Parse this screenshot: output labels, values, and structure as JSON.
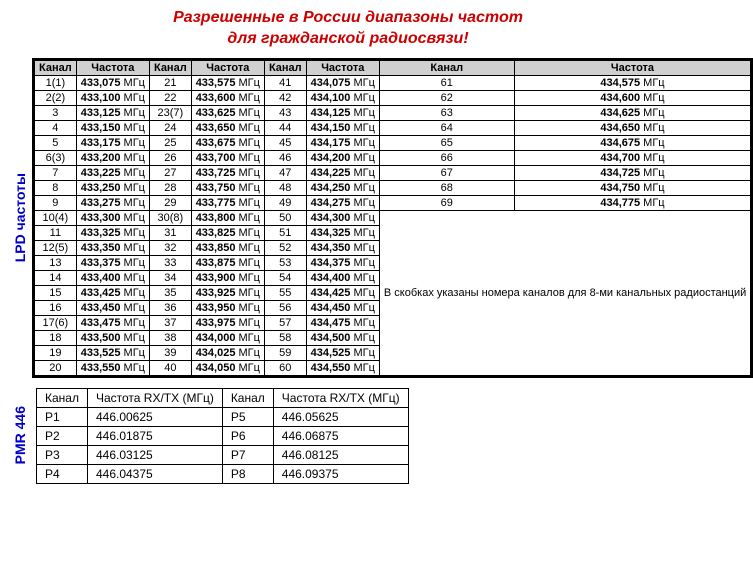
{
  "title_line1": "Разрешенные в России диапазоны частот",
  "title_line2": "для гражданской радиосвязи!",
  "lpd": {
    "side_label": "LPD частоты",
    "headers": {
      "channel": "Канал",
      "freq": "Частота"
    },
    "unit": "МГц",
    "note": "В скобках указаны номера каналов для 8-ми канальных радиостанций",
    "channels": [
      {
        "n": "1(1)",
        "f": "433,075"
      },
      {
        "n": "2(2)",
        "f": "433,100"
      },
      {
        "n": "3",
        "f": "433,125"
      },
      {
        "n": "4",
        "f": "433,150"
      },
      {
        "n": "5",
        "f": "433,175"
      },
      {
        "n": "6(3)",
        "f": "433,200"
      },
      {
        "n": "7",
        "f": "433,225"
      },
      {
        "n": "8",
        "f": "433,250"
      },
      {
        "n": "9",
        "f": "433,275"
      },
      {
        "n": "10(4)",
        "f": "433,300"
      },
      {
        "n": "11",
        "f": "433,325"
      },
      {
        "n": "12(5)",
        "f": "433,350"
      },
      {
        "n": "13",
        "f": "433,375"
      },
      {
        "n": "14",
        "f": "433,400"
      },
      {
        "n": "15",
        "f": "433,425"
      },
      {
        "n": "16",
        "f": "433,450"
      },
      {
        "n": "17(6)",
        "f": "433,475"
      },
      {
        "n": "18",
        "f": "433,500"
      },
      {
        "n": "19",
        "f": "433,525"
      },
      {
        "n": "20",
        "f": "433,550"
      },
      {
        "n": "21",
        "f": "433,575"
      },
      {
        "n": "22",
        "f": "433,600"
      },
      {
        "n": "23(7)",
        "f": "433,625"
      },
      {
        "n": "24",
        "f": "433,650"
      },
      {
        "n": "25",
        "f": "433,675"
      },
      {
        "n": "26",
        "f": "433,700"
      },
      {
        "n": "27",
        "f": "433,725"
      },
      {
        "n": "28",
        "f": "433,750"
      },
      {
        "n": "29",
        "f": "433,775"
      },
      {
        "n": "30(8)",
        "f": "433,800"
      },
      {
        "n": "31",
        "f": "433,825"
      },
      {
        "n": "32",
        "f": "433,850"
      },
      {
        "n": "33",
        "f": "433,875"
      },
      {
        "n": "34",
        "f": "433,900"
      },
      {
        "n": "35",
        "f": "433,925"
      },
      {
        "n": "36",
        "f": "433,950"
      },
      {
        "n": "37",
        "f": "433,975"
      },
      {
        "n": "38",
        "f": "434,000"
      },
      {
        "n": "39",
        "f": "434,025"
      },
      {
        "n": "40",
        "f": "434,050"
      },
      {
        "n": "41",
        "f": "434,075"
      },
      {
        "n": "42",
        "f": "434,100"
      },
      {
        "n": "43",
        "f": "434,125"
      },
      {
        "n": "44",
        "f": "434,150"
      },
      {
        "n": "45",
        "f": "434,175"
      },
      {
        "n": "46",
        "f": "434,200"
      },
      {
        "n": "47",
        "f": "434,225"
      },
      {
        "n": "48",
        "f": "434,250"
      },
      {
        "n": "49",
        "f": "434,275"
      },
      {
        "n": "50",
        "f": "434,300"
      },
      {
        "n": "51",
        "f": "434,325"
      },
      {
        "n": "52",
        "f": "434,350"
      },
      {
        "n": "53",
        "f": "434,375"
      },
      {
        "n": "54",
        "f": "434,400"
      },
      {
        "n": "55",
        "f": "434,425"
      },
      {
        "n": "56",
        "f": "434,450"
      },
      {
        "n": "57",
        "f": "434,475"
      },
      {
        "n": "58",
        "f": "434,500"
      },
      {
        "n": "59",
        "f": "434,525"
      },
      {
        "n": "60",
        "f": "434,550"
      },
      {
        "n": "61",
        "f": "434,575"
      },
      {
        "n": "62",
        "f": "434,600"
      },
      {
        "n": "63",
        "f": "434,625"
      },
      {
        "n": "64",
        "f": "434,650"
      },
      {
        "n": "65",
        "f": "434,675"
      },
      {
        "n": "66",
        "f": "434,700"
      },
      {
        "n": "67",
        "f": "434,725"
      },
      {
        "n": "68",
        "f": "434,750"
      },
      {
        "n": "69",
        "f": "434,775"
      }
    ]
  },
  "pmr": {
    "side_label": "PMR 446",
    "headers": {
      "channel": "Канал",
      "freq": "Частота RX/TX (МГц)"
    },
    "channels": [
      {
        "n": "P1",
        "f": "446.00625"
      },
      {
        "n": "P2",
        "f": "446.01875"
      },
      {
        "n": "P3",
        "f": "446.03125"
      },
      {
        "n": "P4",
        "f": "446.04375"
      },
      {
        "n": "P5",
        "f": "446.05625"
      },
      {
        "n": "P6",
        "f": "446.06875"
      },
      {
        "n": "P7",
        "f": "446.08125"
      },
      {
        "n": "P8",
        "f": "446.09375"
      }
    ]
  }
}
